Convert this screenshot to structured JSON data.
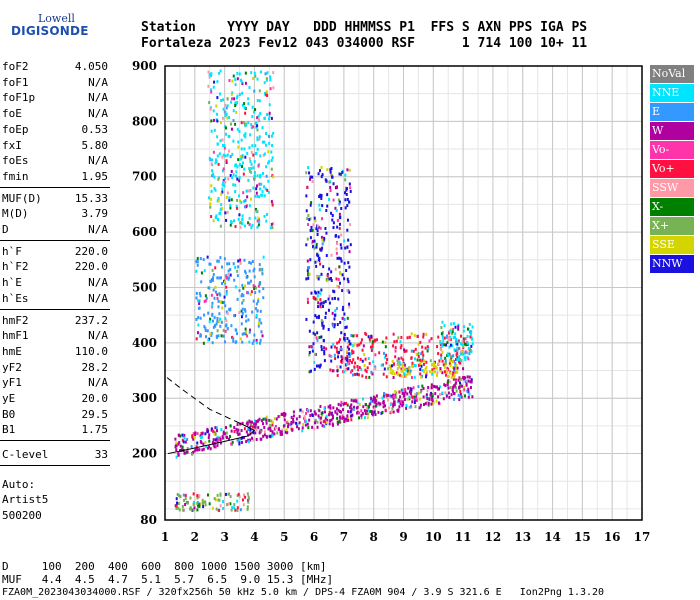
{
  "logo": {
    "line1": "Lowell",
    "line2": "DIGISONDE"
  },
  "header": {
    "line1": "Station    YYYY DAY   DDD HHMMSS P1  FFS S AXN PPS IGA PS",
    "line2": "Fortaleza 2023 Fev12 043 034000 RSF      1 714 100 10+ 11"
  },
  "sidebar": {
    "group1": [
      {
        "name": "foF2",
        "value": "4.050"
      },
      {
        "name": "foF1",
        "value": "N/A"
      },
      {
        "name": "foF1p",
        "value": "N/A"
      },
      {
        "name": "foE",
        "value": "N/A"
      },
      {
        "name": "foEp",
        "value": "0.53"
      },
      {
        "name": "fxI",
        "value": "5.80"
      },
      {
        "name": "foEs",
        "value": "N/A"
      },
      {
        "name": "fmin",
        "value": "1.95"
      }
    ],
    "group2": [
      {
        "name": "MUF(D)",
        "value": "15.33"
      },
      {
        "name": "M(D)",
        "value": "3.79"
      },
      {
        "name": "D",
        "value": "N/A"
      }
    ],
    "group3": [
      {
        "name": "h`F",
        "value": "220.0"
      },
      {
        "name": "h`F2",
        "value": "220.0"
      },
      {
        "name": "h`E",
        "value": "N/A"
      },
      {
        "name": "h`Es",
        "value": "N/A"
      }
    ],
    "group4": [
      {
        "name": "hmF2",
        "value": "237.2"
      },
      {
        "name": "hmF1",
        "value": "N/A"
      },
      {
        "name": "hmE",
        "value": "110.0"
      },
      {
        "name": "yF2",
        "value": "28.2"
      },
      {
        "name": "yF1",
        "value": "N/A"
      },
      {
        "name": "yE",
        "value": "20.0"
      },
      {
        "name": "B0",
        "value": "29.5"
      },
      {
        "name": "B1",
        "value": "1.75"
      }
    ],
    "clevel": {
      "name": "C-level",
      "value": "33"
    },
    "auto": [
      "Auto:",
      "Artist5",
      "500200"
    ]
  },
  "legend": [
    {
      "label": "NoVal",
      "color": "#808080"
    },
    {
      "label": "NNE",
      "color": "#00e5ff"
    },
    {
      "label": "E",
      "color": "#3399ff"
    },
    {
      "label": "W",
      "color": "#b000a0"
    },
    {
      "label": "Vo-",
      "color": "#ff33aa"
    },
    {
      "label": "Vo+",
      "color": "#ff1040"
    },
    {
      "label": "SSW",
      "color": "#ff99a8"
    },
    {
      "label": "X-",
      "color": "#008000"
    },
    {
      "label": "X+",
      "color": "#77b255"
    },
    {
      "label": "SSE",
      "color": "#d4d400"
    },
    {
      "label": "NNW",
      "color": "#1a10e0"
    }
  ],
  "footer": {
    "line1": "D     100  200  400  600  800 1000 1500 3000 [km]",
    "line2": "MUF   4.4  4.5  4.7  5.1  5.7  6.5  9.0 15.3 [MHz]",
    "line3": "FZA0M_2023043034000.RSF / 320fx256h 50 kHz 5.0 km / DPS-4 FZA0M 904 / 3.9 S 321.6 E   Ion2Png 1.3.20"
  },
  "chart_data": {
    "type": "scatter",
    "xlabel": "",
    "ylabel": "",
    "xlim": [
      1,
      17
    ],
    "ylim": [
      80,
      900
    ],
    "x_ticks": [
      1,
      2,
      3,
      4,
      5,
      6,
      7,
      8,
      9,
      10,
      11,
      12,
      13,
      14,
      15,
      16,
      17
    ],
    "y_ticks": [
      80,
      200,
      300,
      400,
      500,
      600,
      700,
      800,
      900
    ],
    "grid": true,
    "echo_regions": [
      {
        "name": "F2 main trace",
        "x0": 1.3,
        "x1": 11.3,
        "y0": 215,
        "y1": 330,
        "color": "W"
      },
      {
        "name": "F2 upper cusp",
        "x0": 6.5,
        "x1": 11.0,
        "y0": 340,
        "y1": 420,
        "color": "Vo+"
      },
      {
        "name": "SSE cluster",
        "x0": 8.5,
        "x1": 10.8,
        "y0": 340,
        "y1": 370,
        "color": "SSE"
      },
      {
        "name": "NNE cluster",
        "x0": 10.2,
        "x1": 11.3,
        "y0": 370,
        "y1": 440,
        "color": "NNE"
      },
      {
        "name": "Spread F column",
        "x0": 5.7,
        "x1": 7.2,
        "y0": 350,
        "y1": 720,
        "color": "NNW"
      },
      {
        "name": "Second hop",
        "x0": 2.0,
        "x1": 4.3,
        "y0": 400,
        "y1": 560,
        "color": "E"
      },
      {
        "name": "Third hop",
        "x0": 2.4,
        "x1": 4.6,
        "y0": 610,
        "y1": 895,
        "color": "NNE"
      },
      {
        "name": "E-layer echoes",
        "x0": 1.3,
        "x1": 3.8,
        "y0": 100,
        "y1": 130,
        "color": "X+"
      }
    ],
    "profile_curve": [
      [
        1.1,
        200
      ],
      [
        2.0,
        210
      ],
      [
        3.0,
        222
      ],
      [
        3.8,
        232
      ],
      [
        4.0,
        242
      ],
      [
        3.5,
        255
      ],
      [
        2.5,
        280
      ],
      [
        1.6,
        315
      ],
      [
        1.0,
        340
      ]
    ]
  }
}
